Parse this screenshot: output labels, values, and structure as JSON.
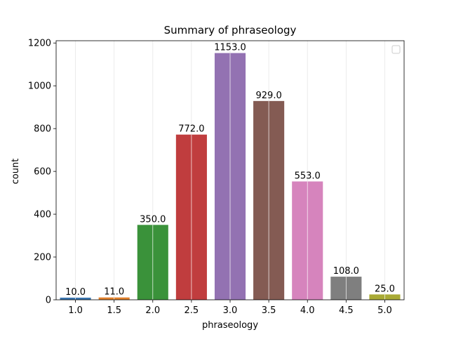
{
  "chart_data": {
    "type": "bar",
    "title": "Summary of phraseology",
    "xlabel": "phraseology",
    "ylabel": "count",
    "categories": [
      "1.0",
      "1.5",
      "2.0",
      "2.5",
      "3.0",
      "3.5",
      "4.0",
      "4.5",
      "5.0"
    ],
    "values": [
      10,
      11,
      350,
      772,
      1153,
      929,
      553,
      108,
      25
    ],
    "value_labels": [
      "10.0",
      "11.0",
      "350.0",
      "772.0",
      "1153.0",
      "929.0",
      "553.0",
      "108.0",
      "25.0"
    ],
    "colors": [
      "#3a75af",
      "#e1812c",
      "#3a923a",
      "#c03d3e",
      "#9372b2",
      "#845b53",
      "#d684bd",
      "#7f7f7f",
      "#a9aa35"
    ],
    "ylim": [
      0,
      1200
    ],
    "yticks": [
      0,
      200,
      400,
      600,
      800,
      1000,
      1200
    ],
    "ytick_labels": [
      "0",
      "200",
      "400",
      "600",
      "800",
      "1000",
      "1200"
    ],
    "grid": "vertical",
    "legend": "top-right"
  }
}
